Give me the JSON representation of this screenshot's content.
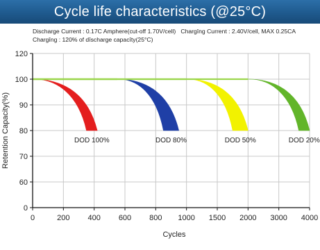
{
  "chart_data": {
    "type": "area",
    "title": "Cycle life characteristics (@25°C)",
    "notes": {
      "line1_left": "Discharge Current : 0.17C Amphere(cut-off 1.70V/cell)",
      "line1_right": "Chargîng Current : 2.40V/cell, MAX 0.25CA",
      "line2": "Chargîng : 120% of dîscharge capacîty(25°C)"
    },
    "xlabel": "Cycles",
    "ylabel": "Retention Capacity(%)",
    "x_ticks": [
      "0",
      "200",
      "400",
      "600",
      "800",
      "1000",
      "1500",
      "2000",
      "3000",
      "4000"
    ],
    "y_ticks": [
      "0",
      "60",
      "70",
      "80",
      "90",
      "100",
      "120"
    ],
    "grid": true,
    "series": [
      {
        "name": "DOD 100%",
        "color": "#e41e1e",
        "retention_100_until": 0,
        "end_upper": 350,
        "end_lower": 420
      },
      {
        "name": "DOD 80%",
        "color": "#1f3fa6",
        "retention_100_until": 550,
        "end_upper": 850,
        "end_lower": 950
      },
      {
        "name": "DOD 50%",
        "color": "#f2f200",
        "retention_100_until": 1000,
        "end_upper": 1750,
        "end_lower": 2000
      },
      {
        "name": "DOD 20%",
        "color": "#62b52a",
        "retention_100_until": 2000,
        "end_upper": 3650,
        "end_lower": 4000
      }
    ]
  }
}
